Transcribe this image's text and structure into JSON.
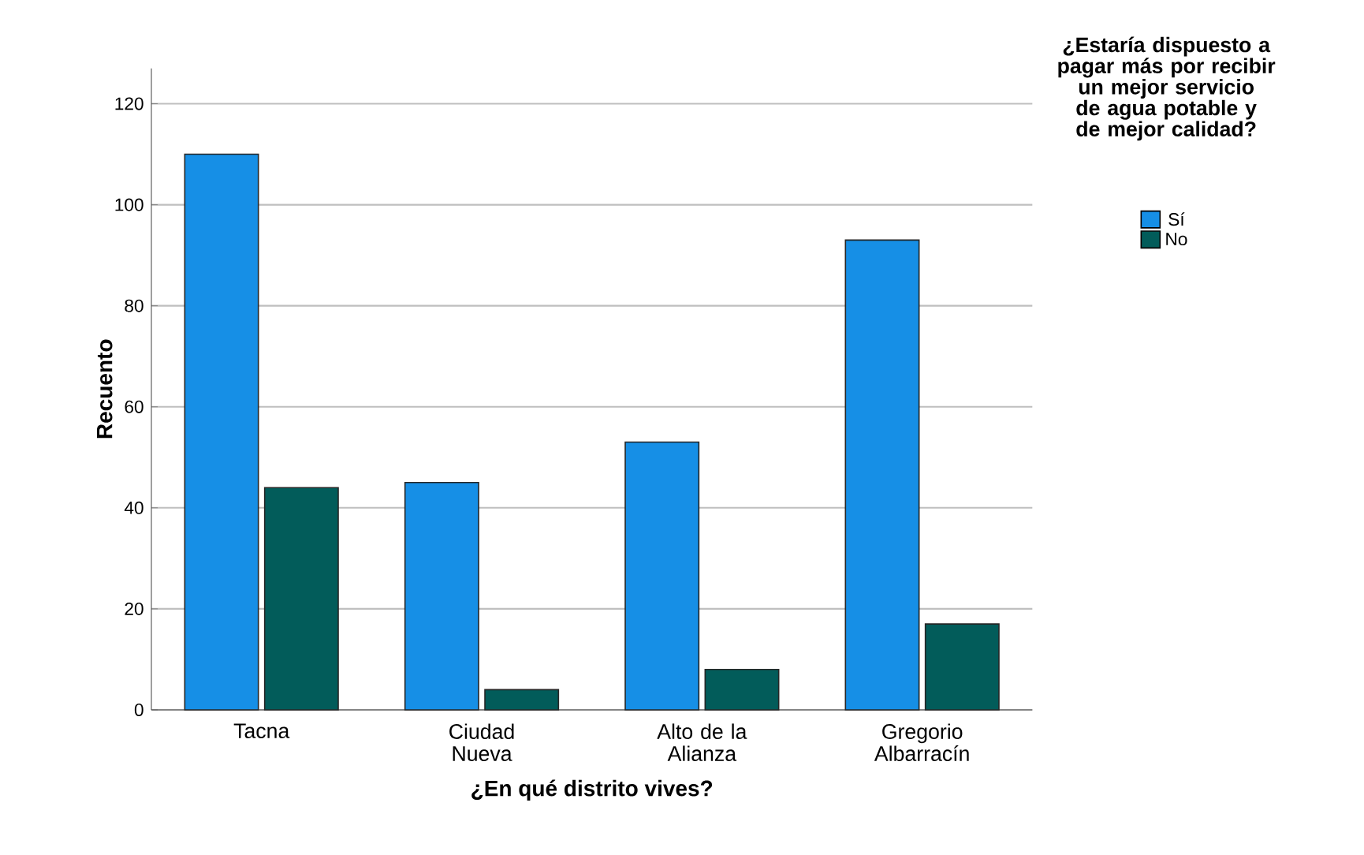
{
  "chart_data": {
    "type": "bar",
    "xlabel": "¿En qué distrito vives?",
    "ylabel": "Recuento",
    "legend_title": "¿Estaría dispuesto a pagar más por recibir un mejor servicio de agua potable y de mejor calidad?",
    "categories": [
      "Tacna",
      "Ciudad Nueva",
      "Alto de la Alianza",
      "Gregorio Albarracín"
    ],
    "series": [
      {
        "name": "Sí",
        "color": "#168fe6",
        "values": [
          110,
          45,
          53,
          93
        ]
      },
      {
        "name": "No",
        "color": "#025c5a",
        "values": [
          44,
          4,
          8,
          17
        ]
      }
    ],
    "ylim": [
      0,
      127
    ],
    "yticks": [
      0,
      20,
      40,
      60,
      80,
      100,
      120
    ],
    "grid": "y",
    "legend": "top right"
  }
}
